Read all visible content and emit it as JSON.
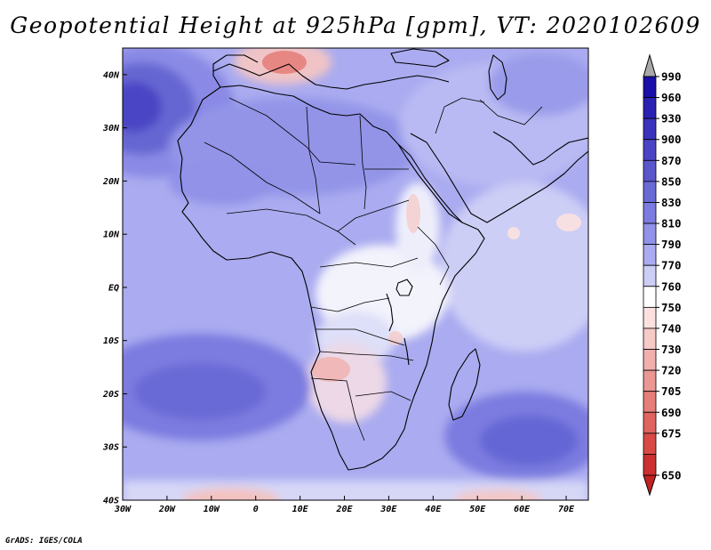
{
  "title": "Geopotential Height at 925hPa [gpm], VT: 2020102609",
  "credit": "GrADS: IGES/COLA",
  "map": {
    "region": "Africa",
    "lon_range": [
      -30,
      75
    ],
    "lat_range": [
      -40,
      45
    ],
    "lon_ticks": [
      {
        "v": -30,
        "label": "30W"
      },
      {
        "v": -20,
        "label": "20W"
      },
      {
        "v": -10,
        "label": "10W"
      },
      {
        "v": 0,
        "label": "0"
      },
      {
        "v": 10,
        "label": "10E"
      },
      {
        "v": 20,
        "label": "20E"
      },
      {
        "v": 30,
        "label": "30E"
      },
      {
        "v": 40,
        "label": "40E"
      },
      {
        "v": 50,
        "label": "50E"
      },
      {
        "v": 60,
        "label": "60E"
      },
      {
        "v": 70,
        "label": "70E"
      }
    ],
    "lat_ticks": [
      {
        "v": 40,
        "label": "40N"
      },
      {
        "v": 30,
        "label": "30N"
      },
      {
        "v": 20,
        "label": "20N"
      },
      {
        "v": 10,
        "label": "10N"
      },
      {
        "v": 0,
        "label": "EQ"
      },
      {
        "v": -10,
        "label": "10S"
      },
      {
        "v": -20,
        "label": "20S"
      },
      {
        "v": -30,
        "label": "30S"
      },
      {
        "v": -40,
        "label": "40S"
      }
    ]
  },
  "colorbar": {
    "levels": [
      {
        "label": "990",
        "color": "#1a0fa8"
      },
      {
        "label": "960",
        "color": "#2a20b2"
      },
      {
        "label": "930",
        "color": "#3a32bc"
      },
      {
        "label": "900",
        "color": "#4a44c4"
      },
      {
        "label": "870",
        "color": "#5a56cc"
      },
      {
        "label": "850",
        "color": "#6a6ad6"
      },
      {
        "label": "830",
        "color": "#7c7ce0"
      },
      {
        "label": "810",
        "color": "#9192e8"
      },
      {
        "label": "790",
        "color": "#aaabf0"
      },
      {
        "label": "770",
        "color": "#cdcef6"
      },
      {
        "label": "760",
        "color": "#ffffff"
      },
      {
        "label": "750",
        "color": "#fbe2e0"
      },
      {
        "label": "740",
        "color": "#f6cac7"
      },
      {
        "label": "730",
        "color": "#f1b0ad"
      },
      {
        "label": "720",
        "color": "#eb9793"
      },
      {
        "label": "705",
        "color": "#e57d78"
      },
      {
        "label": "690",
        "color": "#df635e"
      },
      {
        "label": "675",
        "color": "#d84a45"
      },
      {
        "label": "650",
        "color": "#cc3030"
      }
    ],
    "top_arrow_color": "#a9a9a9",
    "bottom_arrow_color": "#c22222"
  }
}
